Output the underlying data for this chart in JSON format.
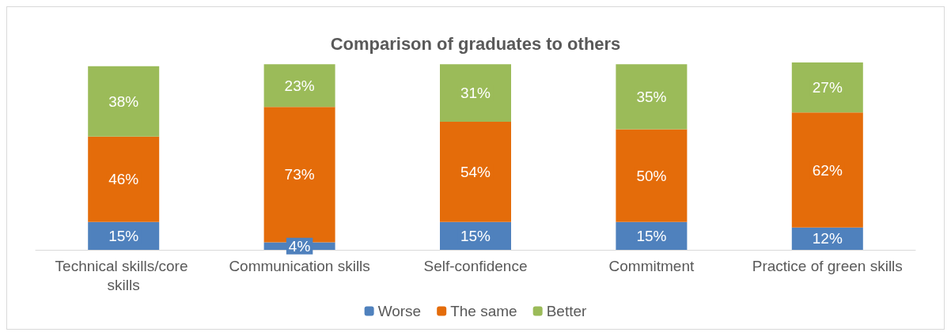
{
  "chart_data": {
    "type": "bar",
    "stacked": true,
    "title": "Comparison of graduates to others",
    "categories": [
      "Technical skills/core skills",
      "Communication skills",
      "Self-confidence",
      "Commitment",
      "Practice of green skills"
    ],
    "series": [
      {
        "name": "Worse",
        "color": "#4f81bd",
        "values": [
          15,
          4,
          15,
          15,
          12
        ],
        "value_labels": [
          "15%",
          "4%",
          "15%",
          "15%",
          "12%"
        ]
      },
      {
        "name": "The same",
        "color": "#e46c0a",
        "values": [
          46,
          73,
          54,
          50,
          62
        ],
        "value_labels": [
          "46%",
          "73%",
          "54%",
          "50%",
          "62%"
        ]
      },
      {
        "name": "Better",
        "color": "#9bbb59",
        "values": [
          38,
          23,
          31,
          35,
          27
        ],
        "value_labels": [
          "38%",
          "23%",
          "31%",
          "35%",
          "27%"
        ]
      }
    ],
    "legend": "bottom"
  }
}
